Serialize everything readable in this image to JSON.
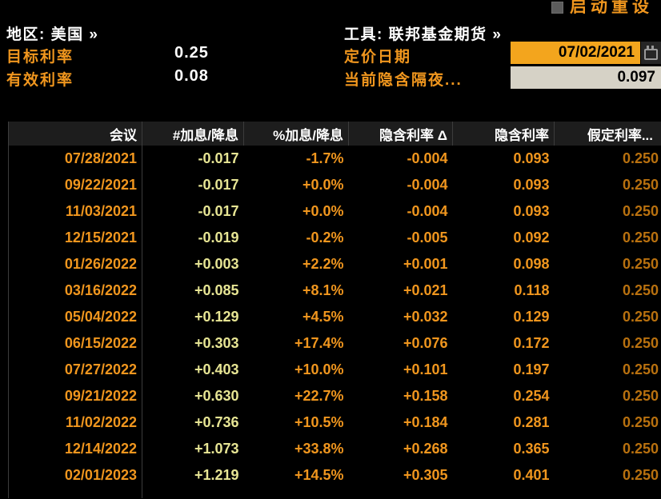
{
  "top": {
    "reset_label": "启动重设"
  },
  "controls": {
    "region_label": "地区: 美国 »",
    "tool_label": "工具: 联邦基金期货 »",
    "target_rate_label": "目标利率",
    "target_rate_value": "0.25",
    "effective_rate_label": "有效利率",
    "effective_rate_value": "0.08",
    "pricing_date_label": "定价日期",
    "pricing_date_value": "07/02/2021",
    "implied_overnight_label": "当前隐含隔夜...",
    "implied_overnight_value": "0.097"
  },
  "table": {
    "headers": [
      "会议",
      "#加息/降息",
      "%加息/降息",
      "隐含利率 Δ",
      "隐含利率",
      "假定利率..."
    ],
    "col_keys": [
      "meeting",
      "num-hikes-cuts",
      "pct-hike-cut",
      "implied-rate-change",
      "implied-rate",
      "assumed-rate"
    ],
    "rows": [
      [
        "07/28/2021",
        "-0.017",
        "-1.7%",
        "-0.004",
        "0.093",
        "0.250"
      ],
      [
        "09/22/2021",
        "-0.017",
        "+0.0%",
        "-0.004",
        "0.093",
        "0.250"
      ],
      [
        "11/03/2021",
        "-0.017",
        "+0.0%",
        "-0.004",
        "0.093",
        "0.250"
      ],
      [
        "12/15/2021",
        "-0.019",
        "-0.2%",
        "-0.005",
        "0.092",
        "0.250"
      ],
      [
        "01/26/2022",
        "+0.003",
        "+2.2%",
        "+0.001",
        "0.098",
        "0.250"
      ],
      [
        "03/16/2022",
        "+0.085",
        "+8.1%",
        "+0.021",
        "0.118",
        "0.250"
      ],
      [
        "05/04/2022",
        "+0.129",
        "+4.5%",
        "+0.032",
        "0.129",
        "0.250"
      ],
      [
        "06/15/2022",
        "+0.303",
        "+17.4%",
        "+0.076",
        "0.172",
        "0.250"
      ],
      [
        "07/27/2022",
        "+0.403",
        "+10.0%",
        "+0.101",
        "0.197",
        "0.250"
      ],
      [
        "09/21/2022",
        "+0.630",
        "+22.7%",
        "+0.158",
        "0.254",
        "0.250"
      ],
      [
        "11/02/2022",
        "+0.736",
        "+10.5%",
        "+0.184",
        "0.281",
        "0.250"
      ],
      [
        "12/14/2022",
        "+1.073",
        "+33.8%",
        "+0.268",
        "0.365",
        "0.250"
      ],
      [
        "02/01/2023",
        "+1.219",
        "+14.5%",
        "+0.305",
        "0.401",
        "0.250"
      ]
    ]
  },
  "colors": {
    "amber": "#f0961e",
    "pale_yellow": "#e7e594",
    "dim_amber": "#b9710f",
    "date_field_bg": "#f3a51d",
    "overnight_field_bg": "#d6d2c6",
    "header_bg": "#1d1d1d",
    "separator": "#3c3c3c",
    "white": "#ffffff"
  }
}
